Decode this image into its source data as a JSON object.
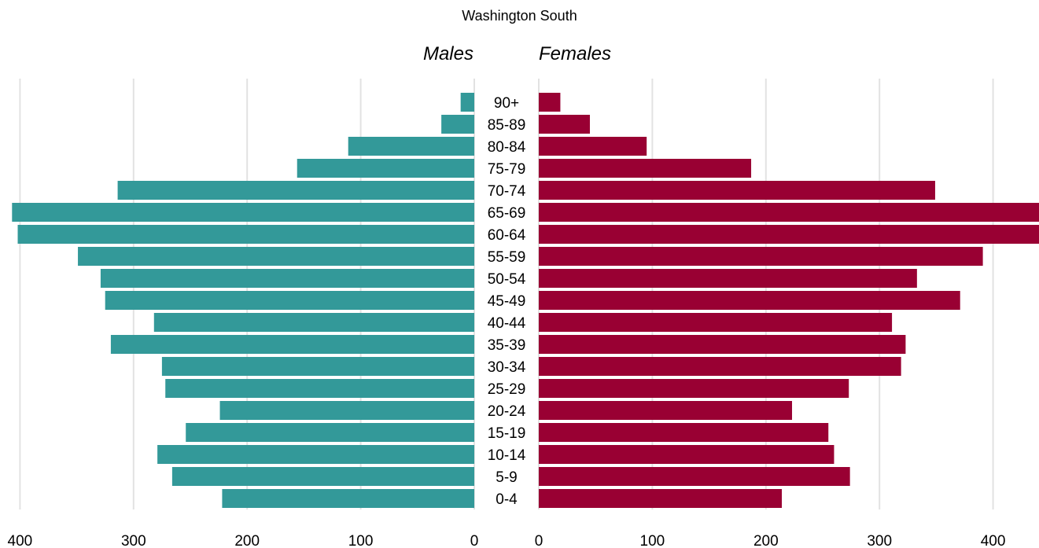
{
  "chart_data": {
    "type": "bar",
    "subtitle": "Washington South",
    "left_title": "Males",
    "right_title": "Females",
    "categories": [
      "0-4",
      "5-9",
      "10-14",
      "15-19",
      "20-24",
      "25-29",
      "30-34",
      "35-39",
      "40-44",
      "45-49",
      "50-54",
      "55-59",
      "60-64",
      "65-69",
      "70-74",
      "75-79",
      "80-84",
      "85-89",
      "90+"
    ],
    "series": [
      {
        "name": "Males",
        "color": "#339999",
        "values": [
          222,
          266,
          279,
          254,
          224,
          272,
          275,
          320,
          282,
          325,
          329,
          349,
          402,
          407,
          314,
          156,
          111,
          29,
          12
        ]
      },
      {
        "name": "Females",
        "color": "#990033",
        "values": [
          214,
          274,
          260,
          255,
          223,
          273,
          319,
          323,
          311,
          371,
          333,
          391,
          441,
          441,
          349,
          187,
          95,
          45,
          19
        ]
      }
    ],
    "males_xlim": [
      0,
      420
    ],
    "females_xlim": [
      0,
      441
    ],
    "males_ticks": [
      "400",
      "300",
      "200",
      "100",
      "0"
    ],
    "females_ticks": [
      "0",
      "100",
      "200",
      "300",
      "400"
    ],
    "grid": true
  }
}
